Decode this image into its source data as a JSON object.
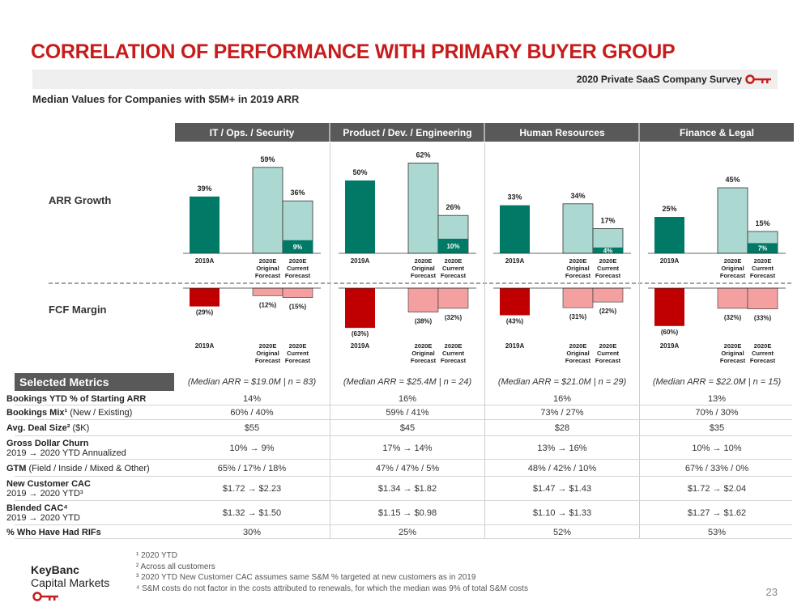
{
  "header": {
    "title": "CORRELATION OF PERFORMANCE WITH PRIMARY BUYER GROUP",
    "survey_label": "2020 Private SaaS Company Survey",
    "subtitle": "Median Values for Companies with $5M+ in 2019 ARR"
  },
  "chart_data": {
    "type": "bar",
    "groups": [
      "IT / Ops. / Security",
      "Product / Dev. / Engineering",
      "Human Resources",
      "Finance & Legal"
    ],
    "row_labels": [
      "ARR Growth",
      "FCF Margin"
    ],
    "bar_labels": [
      "2019A",
      "2020E Original Forecast",
      "2020E Current Forecast"
    ],
    "arr_growth": {
      "2019A": [
        39,
        50,
        33,
        25
      ],
      "2020E Original Forecast": [
        59,
        62,
        34,
        45
      ],
      "2020E Current Forecast": [
        36,
        26,
        17,
        15
      ],
      "2020 YTD": [
        9,
        10,
        4,
        7
      ]
    },
    "fcf_margin": {
      "2019A": [
        -29,
        -63,
        -43,
        -60
      ],
      "2020E Original Forecast": [
        -12,
        -38,
        -31,
        -32
      ],
      "2020E Current Forecast": [
        -15,
        -32,
        -22,
        -33
      ]
    },
    "arr_labels": [
      [
        "39%",
        "59%",
        "36%",
        "9%"
      ],
      [
        "50%",
        "62%",
        "26%",
        "10%"
      ],
      [
        "33%",
        "34%",
        "17%",
        "4%"
      ],
      [
        "25%",
        "45%",
        "15%",
        "7%"
      ]
    ],
    "fcf_labels": [
      [
        "(29%)",
        "(12%)",
        "(15%)"
      ],
      [
        "(63%)",
        "(38%)",
        "(32%)"
      ],
      [
        "(43%)",
        "(31%)",
        "(22%)"
      ],
      [
        "(60%)",
        "(32%)",
        "(33%)"
      ]
    ],
    "colors": {
      "arr_2019": "#007a66",
      "arr_forecast": "#acd8d2",
      "arr_ytd": "#007a66",
      "fcf_2019": "#c00000",
      "fcf_forecast": "#f4a0a0",
      "group_header": "#595959"
    }
  },
  "metrics": {
    "header": "Selected Metrics",
    "n_labels": [
      "(Median ARR = $19.0M | n = 83)",
      "(Median ARR = $25.4M | n = 24)",
      "(Median ARR = $21.0M | n = 29)",
      "(Median ARR = $22.0M | n = 15)"
    ],
    "rows": [
      {
        "label": "Bookings YTD % of Starting ARR",
        "label2": "",
        "values": [
          "14%",
          "16%",
          "16%",
          "13%"
        ]
      },
      {
        "label": "Bookings Mix¹",
        "label_suffix": " (New / Existing)",
        "label2": "",
        "values": [
          "60% / 40%",
          "59% / 41%",
          "73% / 27%",
          "70% / 30%"
        ]
      },
      {
        "label": "Avg. Deal Size²",
        "label_suffix": " ($K)",
        "label2": "",
        "values": [
          "$55",
          "$45",
          "$28",
          "$35"
        ]
      },
      {
        "label": "Gross Dollar Churn",
        "label2": "2019 → 2020 YTD Annualized",
        "values": [
          "10% → 9%",
          "17% → 14%",
          "13% → 16%",
          "10% → 10%"
        ]
      },
      {
        "label": "GTM",
        "label_suffix": " (Field / Inside / Mixed & Other)",
        "label2": "",
        "values": [
          "65% / 17% / 18%",
          "47% / 47% / 5%",
          "48% / 42% / 10%",
          "67% / 33% / 0%"
        ]
      },
      {
        "label": "New Customer CAC",
        "label2": "2019 → 2020 YTD³",
        "values": [
          "$1.72 → $2.23",
          "$1.34 → $1.82",
          "$1.47 → $1.43",
          "$1.72 → $2.04"
        ]
      },
      {
        "label": "Blended CAC⁴",
        "label2": "2019 → 2020 YTD",
        "values": [
          "$1.32 → $1.50",
          "$1.15 → $0.98",
          "$1.10 → $1.33",
          "$1.27 → $1.62"
        ]
      },
      {
        "label": "% Who Have Had RIFs",
        "label2": "",
        "values": [
          "30%",
          "25%",
          "52%",
          "53%"
        ]
      }
    ]
  },
  "footnotes": [
    "¹ 2020 YTD",
    "² Across all customers",
    "³ 2020 YTD New Customer CAC assumes same S&M % targeted at new customers as in 2019",
    "⁴ S&M costs do not factor in the costs attributed to renewals, for which the median was 9% of total S&M costs"
  ],
  "logo": {
    "line1": "KeyBanc",
    "line2": "Capital Markets"
  },
  "page_number": "23"
}
